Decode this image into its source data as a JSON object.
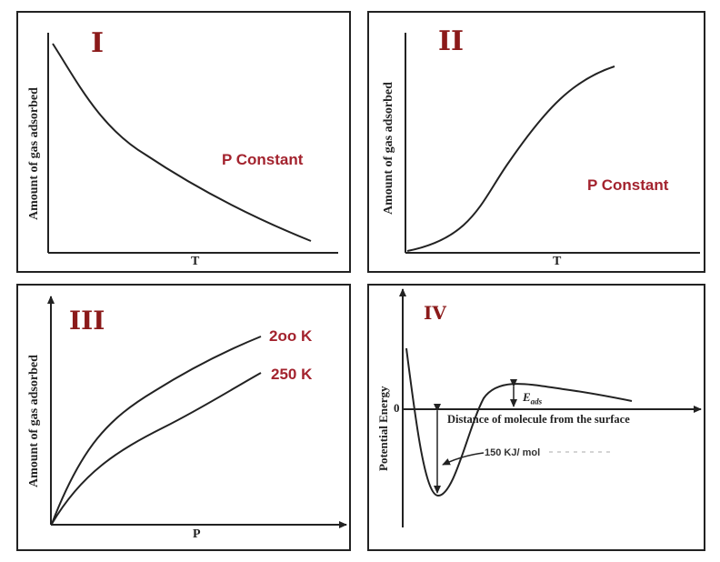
{
  "panels": [
    {
      "numeral": "I",
      "ylabel": "Amount of gas adsorbed",
      "xlabel": "T",
      "annotation": "P Constant"
    },
    {
      "numeral": "II",
      "ylabel": "Amount of gas adsorbed",
      "xlabel": "T",
      "annotation": "P Constant"
    },
    {
      "numeral": "III",
      "ylabel": "Amount of gas adsorbed",
      "xlabel": "P",
      "curves": [
        "2oo K",
        "250 K"
      ]
    },
    {
      "numeral": "IV",
      "ylabel": "Potential Energy",
      "xlabel": "Distance of molecule from the surface",
      "zero_label": "0",
      "barrier_label": "E",
      "barrier_subscript": "ads",
      "well_label": "150 KJ/ mol"
    }
  ],
  "colors": {
    "accent": "#a3232e",
    "numeral": "#8b1a1a",
    "ink": "#222222"
  }
}
